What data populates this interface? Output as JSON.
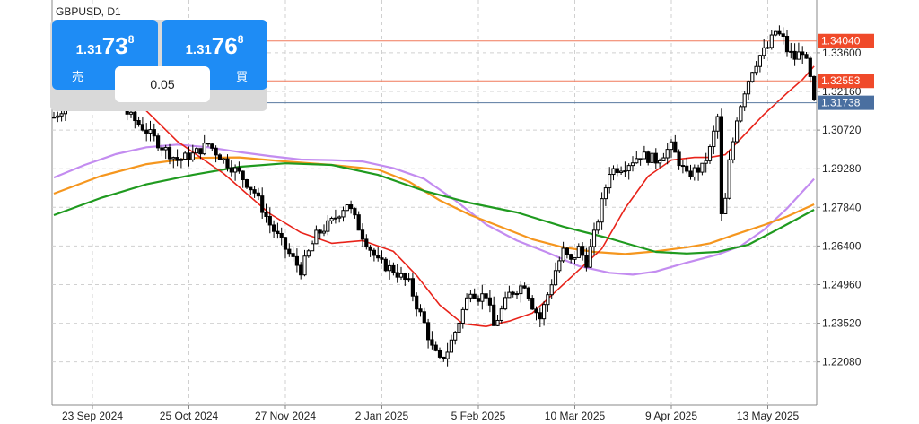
{
  "symbol": "GBPUSD, D1",
  "trade_panel": {
    "sell_label": "売",
    "sell_price": {
      "small": "1.31",
      "big": "73",
      "sup": "8"
    },
    "buy_label": "買",
    "buy_price": {
      "small": "1.31",
      "big": "76",
      "sup": "8"
    },
    "spread": "0.05"
  },
  "colors": {
    "background": "#ffffff",
    "grid": "#d0d0d0",
    "candle": "#000000",
    "ma_fast": "#e8231a",
    "ma_mid": "#f5961e",
    "ma_slow": "#1f9a1f",
    "ma_purple": "#c38cf0",
    "hline": "#f0785a",
    "bid_line": "#5a7aa0",
    "tag_red": "#f04a2a",
    "tag_blue": "#4a6fa0",
    "button": "#1e8cf5",
    "panel": "#d9d9d9"
  },
  "chart_data": {
    "type": "candlestick",
    "ylim": [
      1.21,
      1.348
    ],
    "y_ticks": [
      1.336,
      1.3216,
      1.3072,
      1.2928,
      1.2784,
      1.264,
      1.2496,
      1.2352,
      1.2208
    ],
    "y_tick_labels": [
      "1.33600",
      "1.32160",
      "1.30720",
      "1.29280",
      "1.27840",
      "1.26400",
      "1.24960",
      "1.23520",
      "1.22080"
    ],
    "x_ticks": [
      10,
      35,
      60,
      85,
      110,
      135,
      160,
      185
    ],
    "x_tick_labels": [
      "23 Sep 2024",
      "25 Oct 2024",
      "27 Nov 2024",
      "2 Jan 2025",
      "5 Feb 2025",
      "10 Mar 2025",
      "9 Apr 2025",
      "13 May 2025"
    ],
    "num_bars": 184,
    "tagged_levels": [
      {
        "label": "1.34040",
        "value": 1.3404,
        "color": "#f04a2a",
        "line": "hline"
      },
      {
        "label": "1.32553",
        "value": 1.32553,
        "color": "#f04a2a",
        "line": "hline"
      },
      {
        "label": "1.31738",
        "value": 1.31738,
        "color": "#4a6fa0",
        "line": "bid"
      }
    ],
    "anchors": [
      [
        0,
        1.312
      ],
      [
        4,
        1.318
      ],
      [
        8,
        1.322
      ],
      [
        12,
        1.325
      ],
      [
        16,
        1.318
      ],
      [
        20,
        1.312
      ],
      [
        24,
        1.307
      ],
      [
        28,
        1.301
      ],
      [
        32,
        1.296
      ],
      [
        36,
        1.298
      ],
      [
        40,
        1.302
      ],
      [
        44,
        1.296
      ],
      [
        48,
        1.291
      ],
      [
        52,
        1.284
      ],
      [
        56,
        1.272
      ],
      [
        60,
        1.263
      ],
      [
        64,
        1.255
      ],
      [
        68,
        1.268
      ],
      [
        72,
        1.273
      ],
      [
        76,
        1.28
      ],
      [
        80,
        1.268
      ],
      [
        84,
        1.258
      ],
      [
        88,
        1.255
      ],
      [
        92,
        1.25
      ],
      [
        94,
        1.242
      ],
      [
        96,
        1.235
      ],
      [
        98,
        1.226
      ],
      [
        100,
        1.221
      ],
      [
        102,
        1.225
      ],
      [
        104,
        1.232
      ],
      [
        106,
        1.24
      ],
      [
        108,
        1.248
      ],
      [
        110,
        1.245
      ],
      [
        112,
        1.246
      ],
      [
        114,
        1.234
      ],
      [
        116,
        1.24
      ],
      [
        118,
        1.246
      ],
      [
        122,
        1.25
      ],
      [
        124,
        1.242
      ],
      [
        126,
        1.237
      ],
      [
        128,
        1.246
      ],
      [
        130,
        1.255
      ],
      [
        132,
        1.262
      ],
      [
        134,
        1.258
      ],
      [
        136,
        1.263
      ],
      [
        138,
        1.258
      ],
      [
        140,
        1.268
      ],
      [
        142,
        1.28
      ],
      [
        144,
        1.292
      ],
      [
        148,
        1.294
      ],
      [
        152,
        1.298
      ],
      [
        156,
        1.296
      ],
      [
        160,
        1.301
      ],
      [
        164,
        1.29
      ],
      [
        166,
        1.292
      ],
      [
        168,
        1.293
      ],
      [
        170,
        1.3
      ],
      [
        172,
        1.312
      ],
      [
        173,
        1.275
      ],
      [
        174,
        1.281
      ],
      [
        175,
        1.295
      ],
      [
        176,
        1.303
      ],
      [
        177,
        1.312
      ],
      [
        178,
        1.317
      ],
      [
        179,
        1.322
      ],
      [
        180,
        1.326
      ],
      [
        181,
        1.33
      ],
      [
        183,
        1.335
      ],
      [
        185,
        1.338
      ],
      [
        187,
        1.344
      ],
      [
        189,
        1.341
      ],
      [
        190,
        1.337
      ],
      [
        192,
        1.334
      ],
      [
        194,
        1.337
      ],
      [
        195,
        1.332
      ],
      [
        196,
        1.326
      ],
      [
        197,
        1.317
      ]
    ],
    "ma_fast": [
      [
        0,
        1.322
      ],
      [
        20,
        1.32
      ],
      [
        32,
        1.303
      ],
      [
        44,
        1.291
      ],
      [
        56,
        1.276
      ],
      [
        64,
        1.269
      ],
      [
        72,
        1.265
      ],
      [
        80,
        1.266
      ],
      [
        88,
        1.262
      ],
      [
        94,
        1.253
      ],
      [
        100,
        1.242
      ],
      [
        106,
        1.235
      ],
      [
        112,
        1.234
      ],
      [
        118,
        1.236
      ],
      [
        124,
        1.239
      ],
      [
        130,
        1.247
      ],
      [
        136,
        1.255
      ],
      [
        142,
        1.263
      ],
      [
        148,
        1.278
      ],
      [
        154,
        1.29
      ],
      [
        160,
        1.296
      ],
      [
        166,
        1.297
      ],
      [
        170,
        1.297
      ],
      [
        174,
        1.298
      ],
      [
        178,
        1.304
      ],
      [
        184,
        1.313
      ],
      [
        190,
        1.321
      ],
      [
        194,
        1.326
      ],
      [
        197,
        1.331
      ]
    ],
    "ma_mid": [
      [
        0,
        1.2835
      ],
      [
        12,
        1.29
      ],
      [
        24,
        1.2945
      ],
      [
        36,
        1.2968
      ],
      [
        48,
        1.297
      ],
      [
        60,
        1.2955
      ],
      [
        72,
        1.2942
      ],
      [
        84,
        1.2925
      ],
      [
        92,
        1.288
      ],
      [
        100,
        1.281
      ],
      [
        108,
        1.2755
      ],
      [
        116,
        1.271
      ],
      [
        124,
        1.2665
      ],
      [
        132,
        1.2635
      ],
      [
        140,
        1.2618
      ],
      [
        148,
        1.261
      ],
      [
        156,
        1.262
      ],
      [
        164,
        1.2635
      ],
      [
        170,
        1.265
      ],
      [
        176,
        1.268
      ],
      [
        184,
        1.2718
      ],
      [
        190,
        1.275
      ],
      [
        197,
        1.2795
      ]
    ],
    "ma_slow": [
      [
        0,
        1.2755
      ],
      [
        12,
        1.2818
      ],
      [
        24,
        1.287
      ],
      [
        36,
        1.2905
      ],
      [
        48,
        1.2935
      ],
      [
        60,
        1.2948
      ],
      [
        72,
        1.2942
      ],
      [
        84,
        1.2905
      ],
      [
        96,
        1.2845
      ],
      [
        108,
        1.28
      ],
      [
        120,
        1.2765
      ],
      [
        132,
        1.2712
      ],
      [
        144,
        1.2668
      ],
      [
        156,
        1.2618
      ],
      [
        164,
        1.2612
      ],
      [
        172,
        1.2618
      ],
      [
        180,
        1.2645
      ],
      [
        188,
        1.2705
      ],
      [
        197,
        1.2775
      ]
    ],
    "ma_purple": [
      [
        0,
        1.2895
      ],
      [
        8,
        1.2942
      ],
      [
        16,
        1.2982
      ],
      [
        24,
        1.3008
      ],
      [
        32,
        1.3018
      ],
      [
        40,
        1.3008
      ],
      [
        48,
        1.299
      ],
      [
        56,
        1.2975
      ],
      [
        64,
        1.2962
      ],
      [
        72,
        1.296
      ],
      [
        80,
        1.2955
      ],
      [
        88,
        1.293
      ],
      [
        96,
        1.289
      ],
      [
        104,
        1.281
      ],
      [
        112,
        1.272
      ],
      [
        120,
        1.266
      ],
      [
        128,
        1.2615
      ],
      [
        136,
        1.2565
      ],
      [
        144,
        1.254
      ],
      [
        150,
        1.2533
      ],
      [
        156,
        1.2545
      ],
      [
        164,
        1.2578
      ],
      [
        172,
        1.2608
      ],
      [
        178,
        1.264
      ],
      [
        184,
        1.27
      ],
      [
        190,
        1.278
      ],
      [
        197,
        1.289
      ]
    ]
  }
}
